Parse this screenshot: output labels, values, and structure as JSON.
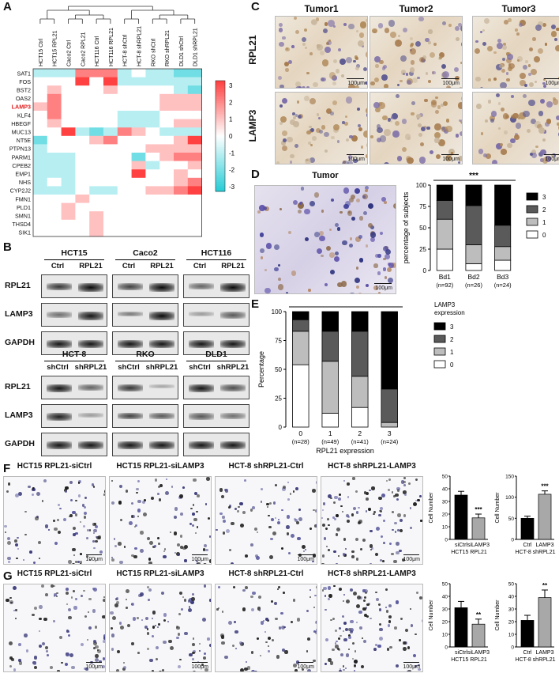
{
  "panels": {
    "A": "A",
    "B": "B",
    "C": "C",
    "D": "D",
    "E": "E",
    "F": "F",
    "G": "G"
  },
  "heatmap": {
    "columns": [
      "HCT15 Ctrl",
      "HCT15 RPL21",
      "Caco2 Ctrl",
      "Caco2 RPL21",
      "HCT116 Ctrl",
      "HCT116 RPL21",
      "HCT-8 shCtrl",
      "HCT-8 shRPL21",
      "RKO shCtrl",
      "RKO shRPL21",
      "DLD1 shCtrl",
      "DLD1 shRPL21"
    ],
    "rows": [
      "SAT1",
      "FOS",
      "BST2",
      "OAS2",
      "LAMP3",
      "KLF4",
      "HBEGF",
      "MUC13",
      "NT5E",
      "PTPN13",
      "PARM1",
      "CPEB2",
      "EMP1",
      "NHS",
      "CYP2J2",
      "FMN1",
      "PLD1",
      "SMN1",
      "THSD4",
      "SIK1"
    ],
    "highlight_row": "LAMP3",
    "highlight_color": "#e02020",
    "scale_ticks": [
      "3",
      "2",
      "1",
      "0",
      "-1",
      "-2",
      "-3"
    ],
    "values": [
      [
        -1,
        -1,
        -1,
        2,
        2,
        2,
        -1,
        0,
        -1,
        -1,
        -2,
        -2
      ],
      [
        0,
        0,
        0,
        3,
        0,
        3,
        -1,
        -1,
        -1,
        -1,
        -1,
        -1
      ],
      [
        0,
        1,
        0,
        0,
        0,
        1,
        0,
        0,
        0,
        0,
        -1,
        -2
      ],
      [
        0,
        2,
        0,
        0,
        0,
        0,
        0,
        0,
        0,
        1,
        1,
        1
      ],
      [
        1,
        2,
        0,
        0,
        0,
        0,
        0,
        0,
        0,
        1,
        1,
        1
      ],
      [
        0,
        2,
        0,
        0,
        0,
        0,
        -1,
        -1,
        -1,
        0,
        0,
        0
      ],
      [
        0,
        1,
        0,
        0,
        0,
        0,
        -1,
        -1,
        -1,
        0,
        1,
        1
      ],
      [
        0,
        0,
        3,
        -1,
        -2,
        -1,
        2,
        1,
        0,
        -1,
        -1,
        -1
      ],
      [
        -2,
        0,
        0,
        0,
        1,
        2,
        0,
        0,
        0,
        0,
        1,
        3
      ],
      [
        -1,
        0,
        0,
        0,
        0,
        0,
        0,
        0,
        1,
        1,
        1,
        1
      ],
      [
        -1,
        -1,
        -1,
        0,
        0,
        0,
        0,
        -2,
        0,
        1,
        2,
        2
      ],
      [
        -1,
        -1,
        -1,
        0,
        0,
        0,
        0,
        1,
        -1,
        0,
        0,
        1
      ],
      [
        -1,
        -1,
        -1,
        0,
        0,
        0,
        0,
        3,
        0,
        0,
        1,
        0
      ],
      [
        -1,
        0,
        -1,
        0,
        0,
        0,
        0,
        0,
        0,
        0,
        1,
        2
      ],
      [
        -1,
        -1,
        -1,
        0,
        -1,
        -1,
        0,
        0,
        1,
        1,
        2,
        3
      ],
      [
        0,
        0,
        0,
        1,
        0,
        0,
        0,
        0,
        0,
        0,
        0,
        0
      ],
      [
        0,
        0,
        1,
        0,
        0,
        0,
        0,
        0,
        0,
        0,
        0,
        0
      ],
      [
        0,
        0,
        1,
        0,
        1,
        0,
        0,
        0,
        0,
        0,
        0,
        0
      ],
      [
        0,
        0,
        0,
        0,
        1,
        0,
        0,
        0,
        0,
        0,
        0,
        0
      ],
      [
        0,
        0,
        0,
        0,
        1,
        0,
        0,
        0,
        0,
        0,
        0,
        0
      ]
    ]
  },
  "western": {
    "top_groups": [
      "HCT15",
      "Caco2",
      "HCT116"
    ],
    "top_lanes": [
      "Ctrl",
      "RPL21"
    ],
    "bottom_groups": [
      "HCT-8",
      "RKO",
      "DLD1"
    ],
    "bottom_lanes": [
      "shCtrl",
      "shRPL21"
    ],
    "proteins": [
      "RPL21",
      "LAMP3",
      "GAPDH"
    ]
  },
  "ihc": {
    "columns": [
      "Tumor1",
      "Tumor2",
      "Tumor3"
    ],
    "rows": [
      "RPL21",
      "LAMP3"
    ],
    "scale": "100μm"
  },
  "panelD": {
    "image_title": "Tumor",
    "scale": "100μm",
    "significance": "***"
  },
  "legends": {
    "D": [
      "3",
      "2",
      "1",
      "0"
    ],
    "E_title": [
      "LAMP3",
      "expression"
    ],
    "E": [
      "3",
      "2",
      "1",
      "0"
    ]
  },
  "migration": {
    "F_titles": [
      "HCT15 RPL21-siCtrl",
      "HCT15 RPL21-siLAMP3",
      "HCT-8 shRPL21-Ctrl",
      "HCT-8 shRPL21-LAMP3"
    ],
    "F_scales": [
      "100μm",
      "100μm",
      "100μm",
      "100μm"
    ],
    "G_titles": [
      "HCT15 RPL21-siCtrl",
      "HCT15 RPL21-siLAMP3",
      "HCT-8 shRPL21-Ctrl",
      "HCT-8 shRPL21-LAMP3"
    ],
    "G_scales": [
      "100μm",
      "100μm",
      "100μm",
      "100μm"
    ]
  },
  "chart_data": [
    {
      "id": "D",
      "type": "bar",
      "stacked": true,
      "ylabel": "percentage of subjects",
      "ylim": [
        0,
        100
      ],
      "yticks": [
        "0",
        "25",
        "50",
        "75",
        "100"
      ],
      "categories": [
        "Bd1",
        "Bd2",
        "Bd3"
      ],
      "category_notes": [
        "(n=92)",
        "(n=26)",
        "(n=24)"
      ],
      "significance": "***",
      "series": [
        {
          "name": "0",
          "values": [
            25,
            8,
            12
          ],
          "color": "#ffffff"
        },
        {
          "name": "1",
          "values": [
            35,
            22,
            16
          ],
          "color": "#bdbdbd"
        },
        {
          "name": "2",
          "values": [
            22,
            46,
            25
          ],
          "color": "#5a5a5a"
        },
        {
          "name": "3",
          "values": [
            18,
            24,
            47
          ],
          "color": "#000000"
        }
      ]
    },
    {
      "id": "E",
      "type": "bar",
      "stacked": true,
      "ylabel": "Percentage",
      "xlabel": "RPL21 expression",
      "ylim": [
        0,
        100
      ],
      "yticks": [
        "0",
        "25",
        "50",
        "75",
        "100"
      ],
      "categories": [
        "0",
        "1",
        "2",
        "3"
      ],
      "category_notes": [
        "(n=28)",
        "(n=49)",
        "(n=41)",
        "(n=24)"
      ],
      "significance": "***",
      "series": [
        {
          "name": "0",
          "values": [
            54,
            12,
            17,
            0
          ],
          "color": "#ffffff"
        },
        {
          "name": "1",
          "values": [
            29,
            45,
            27,
            4
          ],
          "color": "#bdbdbd"
        },
        {
          "name": "2",
          "values": [
            10,
            26,
            39,
            29
          ],
          "color": "#5a5a5a"
        },
        {
          "name": "3",
          "values": [
            7,
            17,
            17,
            67
          ],
          "color": "#000000"
        }
      ]
    },
    {
      "id": "F1",
      "type": "bar",
      "ylabel": "Cell Number",
      "ylim": [
        0,
        50
      ],
      "yticks": [
        "0",
        "10",
        "20",
        "30",
        "40",
        "50"
      ],
      "categories": [
        "siCtrl",
        "siLAMP3"
      ],
      "xlabel": "HCT15 RPL21",
      "values": [
        35,
        17
      ],
      "errors": [
        3,
        3
      ],
      "significance": "***"
    },
    {
      "id": "F2",
      "type": "bar",
      "ylabel": "Cell Number",
      "ylim": [
        0,
        150
      ],
      "yticks": [
        "0",
        "50",
        "100",
        "150"
      ],
      "categories": [
        "Ctrl",
        "LAMP3"
      ],
      "xlabel": "HCT-8 shRPL21",
      "values": [
        50,
        107
      ],
      "errors": [
        5,
        8
      ],
      "significance": "***"
    },
    {
      "id": "G1",
      "type": "bar",
      "ylabel": "Cell Number",
      "ylim": [
        0,
        50
      ],
      "yticks": [
        "0",
        "10",
        "20",
        "30",
        "40",
        "50"
      ],
      "categories": [
        "siCtrl",
        "siLAMP3"
      ],
      "xlabel": "HCT15 RPL21",
      "values": [
        31,
        18
      ],
      "errors": [
        5,
        4
      ],
      "significance": "**"
    },
    {
      "id": "G2",
      "type": "bar",
      "ylabel": "Cell Number",
      "ylim": [
        0,
        50
      ],
      "yticks": [
        "0",
        "10",
        "20",
        "30",
        "40",
        "50"
      ],
      "categories": [
        "Ctrl",
        "LAMP3"
      ],
      "xlabel": "HCT-8 shRPL21",
      "values": [
        21,
        39
      ],
      "errors": [
        4,
        6
      ],
      "significance": "**"
    }
  ]
}
